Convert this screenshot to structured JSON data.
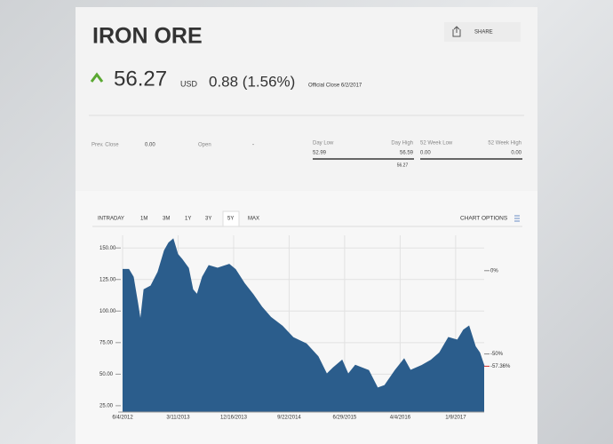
{
  "header": {
    "title": "IRON ORE",
    "price": "56.27",
    "currency": "USD",
    "change": "0.88 (1.56%)",
    "close_note": "Official Close 6/2/2017",
    "share": "SHARE"
  },
  "stats": {
    "prev_close_label": "Prev. Close",
    "prev_close": "0.00",
    "open_label": "Open",
    "open": "-",
    "day_low_label": "Day Low",
    "day_high_label": "Day High",
    "day_low": "52.99",
    "day_high": "56.59",
    "day_current": "56.27",
    "week_low_label": "52 Week Low",
    "week_high_label": "52 Week High",
    "week_low": "0.00",
    "week_high": "0.00"
  },
  "tabs": [
    "INTRADAY",
    "1M",
    "3M",
    "1Y",
    "3Y",
    "5Y",
    "MAX"
  ],
  "chart_options": "CHART OPTIONS",
  "chart_data": {
    "type": "area",
    "color": "#2b5d8c",
    "x": [
      "6/4/2012",
      "7/5/2012",
      "7/28/2012",
      "8/19/2012",
      "9/2/2012",
      "9/20/2012",
      "10/25/2012",
      "11/30/2012",
      "1/1/2013",
      "1/23/2013",
      "2/14/2013",
      "3/9/2013",
      "3/31/2013",
      "5/2/2013",
      "5/24/2013",
      "6/15/2013",
      "7/12/2013",
      "8/13/2013",
      "9/26/2013",
      "11/24/2013",
      "12/25/2013",
      "2/8/2014",
      "3/25/2014",
      "5/8/2014",
      "6/22/2014",
      "8/19/2014",
      "10/12/2014",
      "12/18/2014",
      "2/15/2015",
      "3/31/2015",
      "5/2/2015",
      "6/16/2015",
      "7/17/2015",
      "8/22/2015",
      "10/28/2015",
      "12/12/2015",
      "1/17/2016",
      "3/10/2016",
      "4/24/2016",
      "5/26/2016",
      "7/23/2016",
      "9/6/2016",
      "10/20/2016",
      "12/4/2016",
      "1/18/2017",
      "2/18/2017",
      "3/17/2017",
      "4/18/2017",
      "5/10/2017",
      "6/2/2017"
    ],
    "values": [
      133,
      133,
      127,
      106,
      92,
      117,
      120,
      131,
      148,
      154,
      157,
      145,
      141,
      134,
      117,
      113,
      127,
      136,
      134,
      137,
      133,
      122,
      113,
      103,
      95,
      88,
      79,
      74,
      64,
      50,
      55,
      61,
      50,
      57,
      53,
      39,
      41,
      53,
      62,
      53,
      57,
      61,
      67,
      79,
      77,
      85,
      88,
      72,
      67,
      56.27
    ],
    "xlim": [
      "6/4/2012",
      "6/2/2017"
    ],
    "xticks": [
      "6/4/2012",
      "3/11/2013",
      "12/16/2013",
      "9/22/2014",
      "6/29/2015",
      "4/4/2016",
      "1/9/2017"
    ],
    "ylim": [
      20,
      160
    ],
    "yticks": [
      {
        "value": 25,
        "label": "25.00"
      },
      {
        "value": 50,
        "label": "50.00"
      },
      {
        "value": 75,
        "label": "75.00"
      },
      {
        "value": 100,
        "label": "100.00"
      },
      {
        "value": 125,
        "label": "125.00"
      },
      {
        "value": 150,
        "label": "150.00"
      }
    ],
    "y2lim": [
      -84.85,
      21.21
    ],
    "y2ticks": [
      {
        "value": 0,
        "label": "0%"
      },
      {
        "value": -50,
        "label": "-50%"
      }
    ],
    "annotation": {
      "value": -57.36,
      "label": "-57.36%",
      "color": "#d0312d"
    },
    "grid": true
  }
}
